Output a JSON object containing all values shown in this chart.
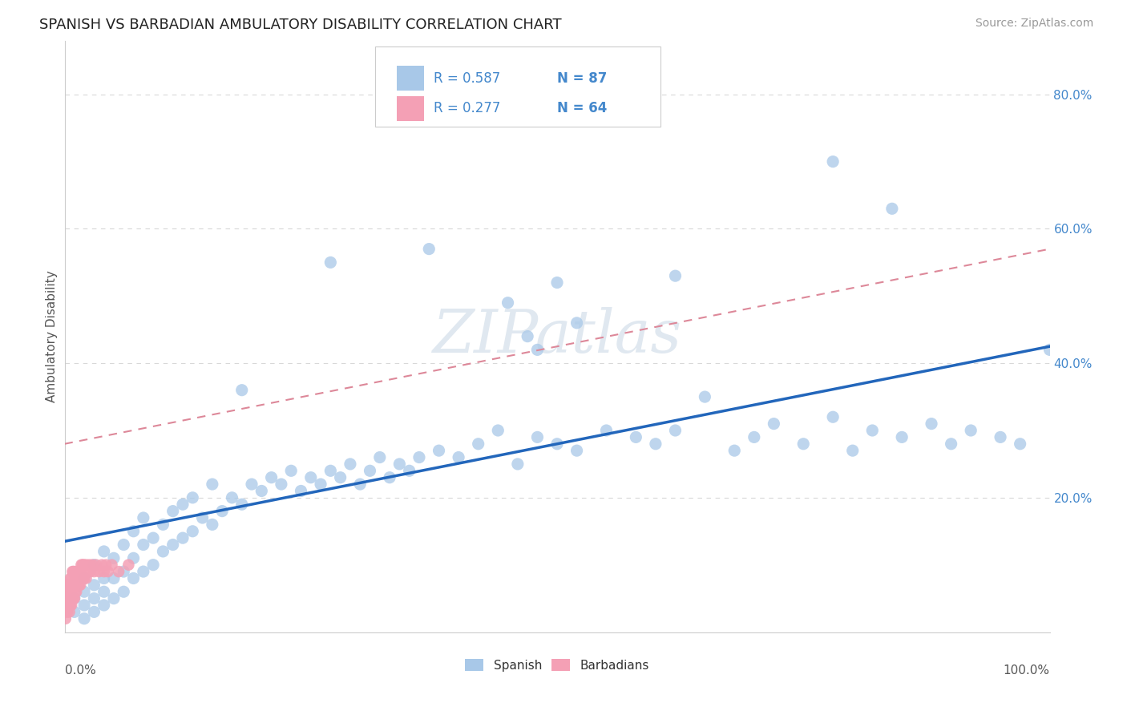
{
  "title": "SPANISH VS BARBADIAN AMBULATORY DISABILITY CORRELATION CHART",
  "source": "Source: ZipAtlas.com",
  "ylabel": "Ambulatory Disability",
  "xlim": [
    0.0,
    1.0
  ],
  "ylim": [
    0.0,
    0.88
  ],
  "spanish_R": 0.587,
  "spanish_N": 87,
  "barbadian_R": 0.277,
  "barbadian_N": 64,
  "spanish_color": "#a8c8e8",
  "barbadian_color": "#f4a0b5",
  "spanish_line_color": "#2266bb",
  "barbadian_line_color": "#dd8899",
  "background_color": "#ffffff",
  "grid_color": "#d8d8d8",
  "watermark": "ZIPatlas",
  "legend_color": "#4488cc",
  "ytick_right_positions": [
    0.2,
    0.4,
    0.6,
    0.8
  ],
  "ytick_right_labels": [
    "20.0%",
    "40.0%",
    "60.0%",
    "80.0%"
  ],
  "spanish_x": [
    0.01,
    0.01,
    0.02,
    0.02,
    0.02,
    0.02,
    0.03,
    0.03,
    0.03,
    0.03,
    0.04,
    0.04,
    0.04,
    0.04,
    0.05,
    0.05,
    0.05,
    0.06,
    0.06,
    0.06,
    0.07,
    0.07,
    0.07,
    0.08,
    0.08,
    0.08,
    0.09,
    0.09,
    0.1,
    0.1,
    0.11,
    0.11,
    0.12,
    0.12,
    0.13,
    0.13,
    0.14,
    0.15,
    0.15,
    0.16,
    0.17,
    0.18,
    0.19,
    0.2,
    0.21,
    0.22,
    0.23,
    0.24,
    0.25,
    0.26,
    0.27,
    0.28,
    0.29,
    0.3,
    0.31,
    0.32,
    0.33,
    0.34,
    0.35,
    0.36,
    0.38,
    0.4,
    0.42,
    0.44,
    0.46,
    0.48,
    0.5,
    0.52,
    0.55,
    0.58,
    0.6,
    0.62,
    0.65,
    0.68,
    0.7,
    0.72,
    0.75,
    0.78,
    0.8,
    0.82,
    0.85,
    0.88,
    0.9,
    0.92,
    0.95,
    0.97,
    1.0
  ],
  "spanish_y": [
    0.03,
    0.05,
    0.02,
    0.04,
    0.06,
    0.08,
    0.03,
    0.05,
    0.07,
    0.1,
    0.04,
    0.06,
    0.08,
    0.12,
    0.05,
    0.08,
    0.11,
    0.06,
    0.09,
    0.13,
    0.08,
    0.11,
    0.15,
    0.09,
    0.13,
    0.17,
    0.1,
    0.14,
    0.12,
    0.16,
    0.13,
    0.18,
    0.14,
    0.19,
    0.15,
    0.2,
    0.17,
    0.16,
    0.22,
    0.18,
    0.2,
    0.19,
    0.22,
    0.21,
    0.23,
    0.22,
    0.24,
    0.21,
    0.23,
    0.22,
    0.24,
    0.23,
    0.25,
    0.22,
    0.24,
    0.26,
    0.23,
    0.25,
    0.24,
    0.26,
    0.27,
    0.26,
    0.28,
    0.3,
    0.25,
    0.29,
    0.28,
    0.27,
    0.3,
    0.29,
    0.28,
    0.3,
    0.35,
    0.27,
    0.29,
    0.31,
    0.28,
    0.32,
    0.27,
    0.3,
    0.29,
    0.31,
    0.28,
    0.3,
    0.29,
    0.28,
    0.42
  ],
  "spanish_outliers_x": [
    0.18,
    0.27,
    0.37,
    0.45,
    0.47,
    0.48,
    0.5,
    0.52,
    0.62,
    0.78,
    0.84
  ],
  "spanish_outliers_y": [
    0.36,
    0.55,
    0.57,
    0.49,
    0.44,
    0.42,
    0.52,
    0.46,
    0.53,
    0.7,
    0.63
  ],
  "barbadian_x": [
    0.001,
    0.001,
    0.002,
    0.002,
    0.002,
    0.003,
    0.003,
    0.003,
    0.004,
    0.004,
    0.005,
    0.005,
    0.005,
    0.006,
    0.006,
    0.006,
    0.007,
    0.007,
    0.007,
    0.008,
    0.008,
    0.008,
    0.009,
    0.009,
    0.009,
    0.01,
    0.01,
    0.01,
    0.011,
    0.011,
    0.012,
    0.012,
    0.013,
    0.013,
    0.014,
    0.014,
    0.015,
    0.015,
    0.016,
    0.016,
    0.017,
    0.017,
    0.018,
    0.018,
    0.019,
    0.019,
    0.02,
    0.02,
    0.022,
    0.022,
    0.024,
    0.025,
    0.026,
    0.028,
    0.03,
    0.032,
    0.035,
    0.038,
    0.04,
    0.042,
    0.044,
    0.048,
    0.055,
    0.065
  ],
  "barbadian_y": [
    0.02,
    0.04,
    0.03,
    0.05,
    0.07,
    0.03,
    0.05,
    0.07,
    0.04,
    0.06,
    0.03,
    0.05,
    0.07,
    0.04,
    0.06,
    0.08,
    0.04,
    0.06,
    0.08,
    0.05,
    0.07,
    0.09,
    0.05,
    0.07,
    0.09,
    0.05,
    0.07,
    0.09,
    0.06,
    0.08,
    0.06,
    0.08,
    0.07,
    0.09,
    0.07,
    0.09,
    0.07,
    0.09,
    0.07,
    0.09,
    0.08,
    0.1,
    0.08,
    0.1,
    0.08,
    0.1,
    0.08,
    0.1,
    0.08,
    0.1,
    0.09,
    0.1,
    0.09,
    0.1,
    0.09,
    0.1,
    0.09,
    0.1,
    0.09,
    0.1,
    0.09,
    0.1,
    0.09,
    0.1
  ],
  "spanish_line_x0": 0.0,
  "spanish_line_y0": 0.135,
  "spanish_line_x1": 1.0,
  "spanish_line_y1": 0.425,
  "barbadian_line_x0": 0.0,
  "barbadian_line_y0": 0.28,
  "barbadian_line_x1": 1.0,
  "barbadian_line_y1": 0.57
}
